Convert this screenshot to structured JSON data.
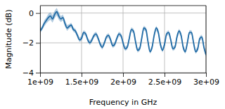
{
  "chart_data": {
    "type": "line",
    "x_label": "Frequency in GHz",
    "y_label": "Magnitude (dB)",
    "grid": true,
    "xlim": [
      1000000000,
      3000000000
    ],
    "xticks": [
      {
        "value": 1000000000,
        "label": "1e+09"
      },
      {
        "value": 1500000000,
        "label": "1.5e+09"
      },
      {
        "value": 2000000000,
        "label": "2e+09"
      },
      {
        "value": 2500000000,
        "label": "2.5e+09"
      },
      {
        "value": 3000000000,
        "label": "3e+09"
      }
    ],
    "ylim": [
      -4,
      0.5
    ],
    "yticks": [
      {
        "value": -4,
        "label": "−4"
      },
      {
        "value": -2,
        "label": "−2"
      },
      0
    ],
    "x": [
      1000000000,
      1025000000,
      1050000000,
      1075000000,
      1100000000,
      1125000000,
      1150000000,
      1175000000,
      1200000000,
      1225000000,
      1250000000,
      1275000000,
      1300000000,
      1325000000,
      1350000000,
      1375000000,
      1400000000,
      1425000000,
      1450000000,
      1475000000,
      1500000000,
      1525000000,
      1550000000,
      1575000000,
      1600000000,
      1625000000,
      1650000000,
      1675000000,
      1700000000,
      1725000000,
      1750000000,
      1775000000,
      1800000000,
      1825000000,
      1850000000,
      1875000000,
      1900000000,
      1925000000,
      1950000000,
      1975000000,
      2000000000,
      2025000000,
      2050000000,
      2075000000,
      2100000000,
      2125000000,
      2150000000,
      2175000000,
      2200000000,
      2225000000,
      2250000000,
      2275000000,
      2300000000,
      2325000000,
      2350000000,
      2375000000,
      2400000000,
      2425000000,
      2450000000,
      2475000000,
      2500000000,
      2525000000,
      2550000000,
      2575000000,
      2600000000,
      2625000000,
      2650000000,
      2675000000,
      2700000000,
      2725000000,
      2750000000,
      2775000000,
      2800000000,
      2825000000,
      2850000000,
      2875000000,
      2900000000,
      2925000000,
      2950000000,
      2975000000,
      3000000000
    ],
    "series": [
      {
        "color": "#1f6aa5",
        "values": [
          -1.2,
          -1.0,
          -0.7,
          -0.5,
          -0.3,
          -0.2,
          -0.4,
          -0.1,
          0.1,
          -0.2,
          -0.4,
          -0.3,
          -0.7,
          -1.0,
          -0.9,
          -0.8,
          -1.1,
          -1.2,
          -1.5,
          -1.8,
          -1.7,
          -1.3,
          -1.4,
          -1.8,
          -2.0,
          -1.8,
          -1.5,
          -1.4,
          -1.7,
          -2.1,
          -2.3,
          -2.0,
          -1.6,
          -1.5,
          -1.8,
          -2.2,
          -2.1,
          -1.7,
          -1.4,
          -1.5,
          -2.0,
          -2.4,
          -2.3,
          -1.7,
          -1.1,
          -1.2,
          -1.9,
          -2.5,
          -2.4,
          -1.7,
          -1.0,
          -1.1,
          -1.9,
          -2.6,
          -2.3,
          -1.5,
          -1.0,
          -1.3,
          -2.1,
          -2.5,
          -2.1,
          -1.4,
          -1.3,
          -1.8,
          -2.4,
          -2.3,
          -1.6,
          -1.2,
          -1.5,
          -2.3,
          -2.6,
          -2.0,
          -1.3,
          -1.3,
          -2.0,
          -2.6,
          -2.4,
          -1.7,
          -1.6,
          -2.3,
          -2.8
        ],
        "error": [
          0.15,
          0.15,
          0.2,
          0.2,
          0.25,
          0.25,
          0.25,
          0.25,
          0.25,
          0.25,
          0.2,
          0.2,
          0.2,
          0.2,
          0.15,
          0.15,
          0.15,
          0.15,
          0.15,
          0.15,
          0.15,
          0.15,
          0.15,
          0.15,
          0.15,
          0.15,
          0.15,
          0.15,
          0.15,
          0.15,
          0.15,
          0.15,
          0.15,
          0.15,
          0.15,
          0.15,
          0.15,
          0.15,
          0.15,
          0.15,
          0.15,
          0.15,
          0.15,
          0.15,
          0.15,
          0.15,
          0.15,
          0.15,
          0.15,
          0.15,
          0.15,
          0.15,
          0.15,
          0.15,
          0.15,
          0.15,
          0.15,
          0.15,
          0.15,
          0.15,
          0.15,
          0.15,
          0.15,
          0.15,
          0.15,
          0.15,
          0.15,
          0.15,
          0.15,
          0.15,
          0.15,
          0.15,
          0.15,
          0.15,
          0.15,
          0.15,
          0.15,
          0.15,
          0.15,
          0.15,
          0.15
        ]
      }
    ]
  }
}
